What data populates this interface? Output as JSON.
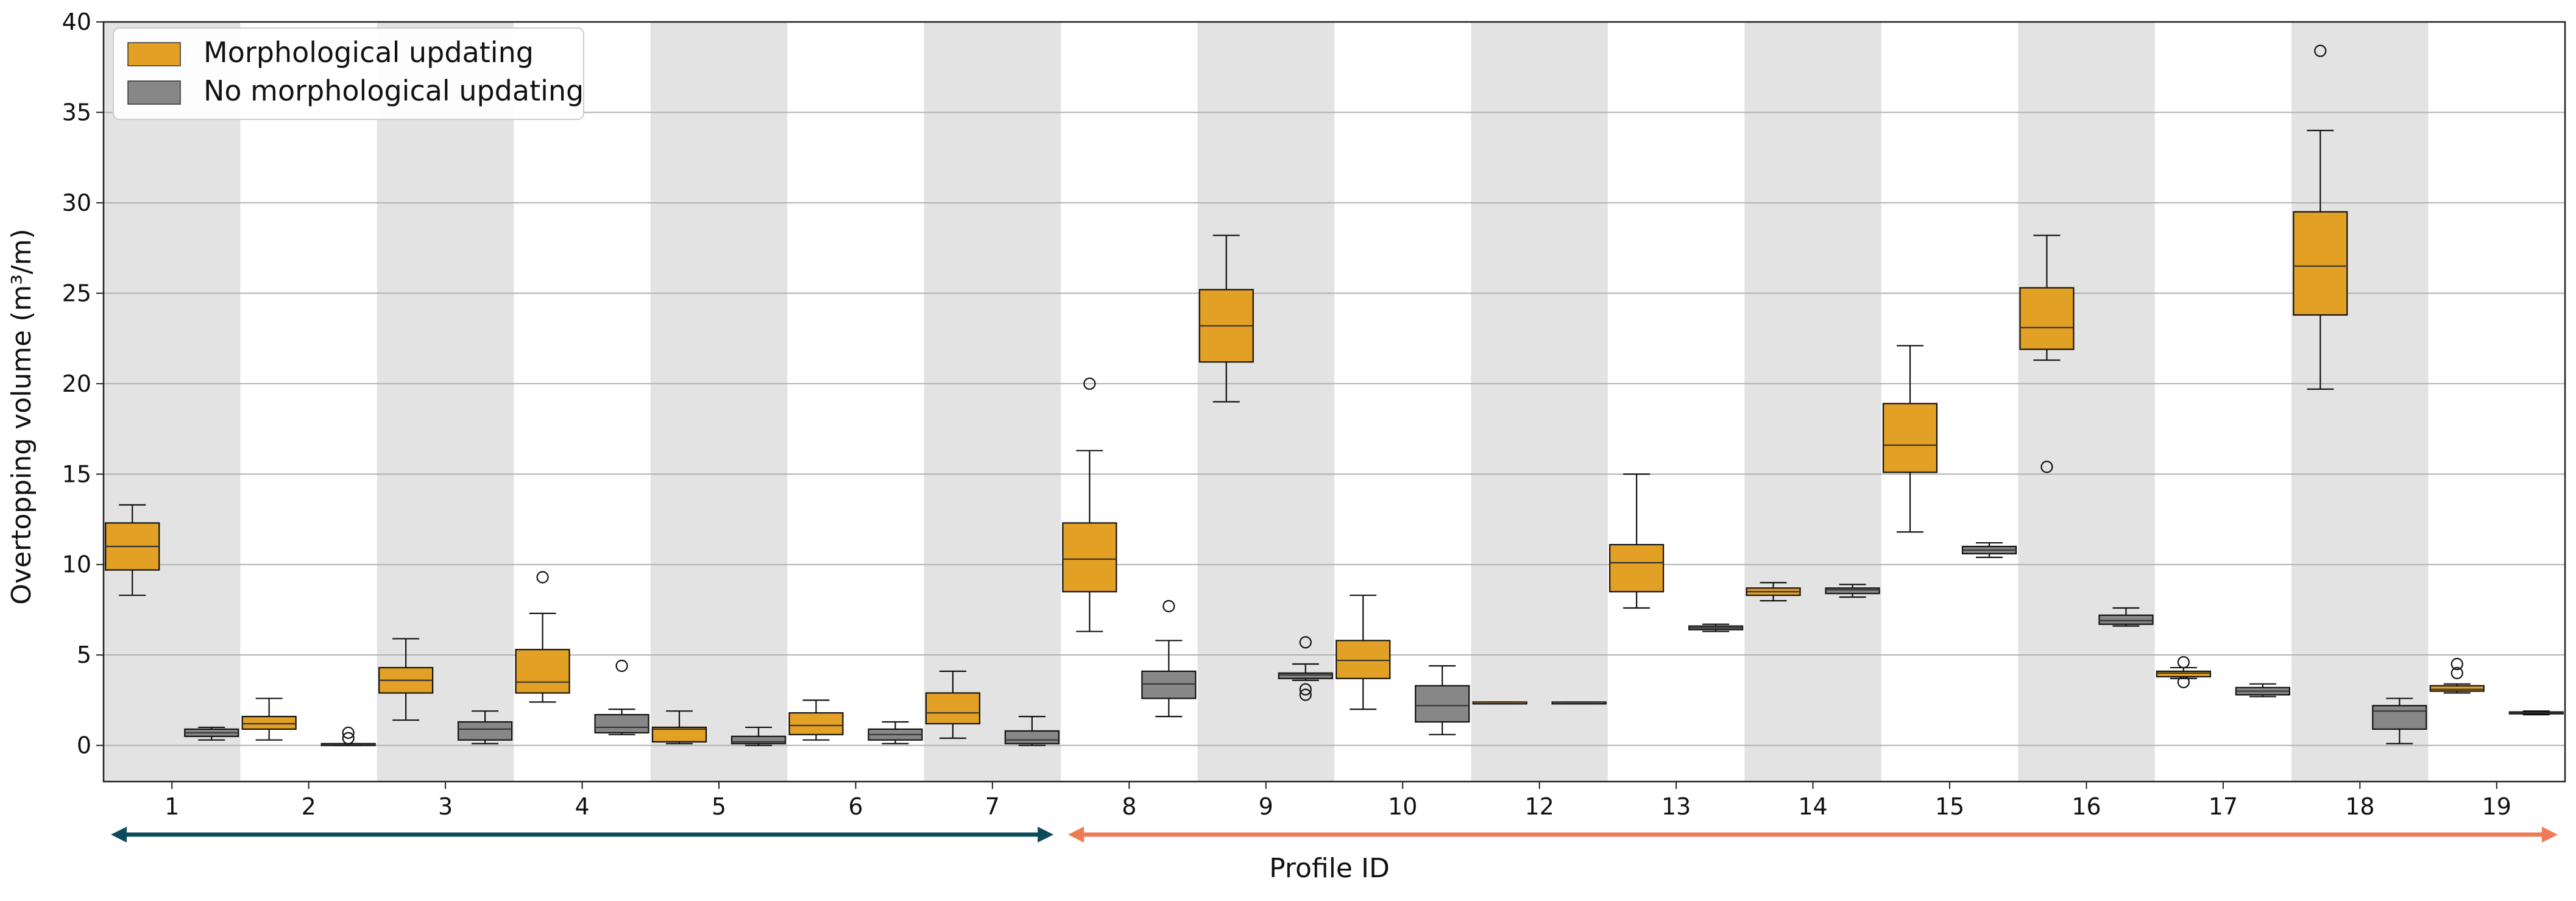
{
  "chart_data": {
    "type": "boxplot",
    "xlabel": "Profile ID",
    "ylabel": "Overtopping volume (m³/m)",
    "ylim": [
      -2,
      40
    ],
    "yticks": [
      0,
      5,
      10,
      15,
      20,
      25,
      30,
      35,
      40
    ],
    "grid": "horizontal",
    "legend_placement": "top-left",
    "categories": [
      "1",
      "2",
      "3",
      "4",
      "5",
      "6",
      "7",
      "8",
      "9",
      "10",
      "12",
      "13",
      "14",
      "15",
      "16",
      "17",
      "18",
      "19"
    ],
    "series": [
      {
        "name": "Morphological updating",
        "color": "#e2a024",
        "boxes": [
          {
            "whislo": 8.3,
            "q1": 9.7,
            "med": 11.0,
            "q3": 12.3,
            "whishi": 13.3,
            "fliers": []
          },
          {
            "whislo": 0.3,
            "q1": 0.9,
            "med": 1.2,
            "q3": 1.6,
            "whishi": 2.6,
            "fliers": []
          },
          {
            "whislo": 1.4,
            "q1": 2.9,
            "med": 3.6,
            "q3": 4.3,
            "whishi": 5.9,
            "fliers": []
          },
          {
            "whislo": 2.4,
            "q1": 2.9,
            "med": 3.5,
            "q3": 5.3,
            "whishi": 7.3,
            "fliers": [
              9.3
            ]
          },
          {
            "whislo": 0.1,
            "q1": 0.2,
            "med": 0.9,
            "q3": 1.0,
            "whishi": 1.9,
            "fliers": []
          },
          {
            "whislo": 0.3,
            "q1": 0.6,
            "med": 1.1,
            "q3": 1.8,
            "whishi": 2.5,
            "fliers": []
          },
          {
            "whislo": 0.4,
            "q1": 1.2,
            "med": 1.8,
            "q3": 2.9,
            "whishi": 4.1,
            "fliers": []
          },
          {
            "whislo": 6.3,
            "q1": 8.5,
            "med": 10.3,
            "q3": 12.3,
            "whishi": 16.3,
            "fliers": [
              20.0
            ]
          },
          {
            "whislo": 19.0,
            "q1": 21.2,
            "med": 23.2,
            "q3": 25.2,
            "whishi": 28.2,
            "fliers": []
          },
          {
            "whislo": 2.0,
            "q1": 3.7,
            "med": 4.7,
            "q3": 5.8,
            "whishi": 8.3,
            "fliers": []
          },
          {
            "whislo": 2.3,
            "q1": 2.3,
            "med": 2.4,
            "q3": 2.4,
            "whishi": 2.4,
            "fliers": []
          },
          {
            "whislo": 7.6,
            "q1": 8.5,
            "med": 10.1,
            "q3": 11.1,
            "whishi": 15.0,
            "fliers": []
          },
          {
            "whislo": 8.0,
            "q1": 8.3,
            "med": 8.5,
            "q3": 8.7,
            "whishi": 9.0,
            "fliers": []
          },
          {
            "whislo": 11.8,
            "q1": 15.1,
            "med": 16.6,
            "q3": 18.9,
            "whishi": 22.1,
            "fliers": []
          },
          {
            "whislo": 21.3,
            "q1": 21.9,
            "med": 23.1,
            "q3": 25.3,
            "whishi": 28.2,
            "fliers": [
              15.4
            ]
          },
          {
            "whislo": 3.7,
            "q1": 3.8,
            "med": 4.0,
            "q3": 4.1,
            "whishi": 4.3,
            "fliers": [
              4.6,
              3.5
            ]
          },
          {
            "whislo": 19.7,
            "q1": 23.8,
            "med": 26.5,
            "q3": 29.5,
            "whishi": 34.0,
            "fliers": [
              38.4
            ]
          },
          {
            "whislo": 2.9,
            "q1": 3.0,
            "med": 3.1,
            "q3": 3.3,
            "whishi": 3.4,
            "fliers": [
              4.5,
              4.0
            ]
          }
        ]
      },
      {
        "name": "No morphological updating",
        "color": "#878787",
        "boxes": [
          {
            "whislo": 0.3,
            "q1": 0.5,
            "med": 0.7,
            "q3": 0.9,
            "whishi": 1.0,
            "fliers": []
          },
          {
            "whislo": 0.0,
            "q1": 0.0,
            "med": 0.05,
            "q3": 0.1,
            "whishi": 0.1,
            "fliers": [
              0.7,
              0.4
            ]
          },
          {
            "whislo": 0.1,
            "q1": 0.3,
            "med": 0.9,
            "q3": 1.3,
            "whishi": 1.9,
            "fliers": []
          },
          {
            "whislo": 0.6,
            "q1": 0.7,
            "med": 1.0,
            "q3": 1.7,
            "whishi": 2.0,
            "fliers": [
              4.4
            ]
          },
          {
            "whislo": 0.0,
            "q1": 0.1,
            "med": 0.2,
            "q3": 0.5,
            "whishi": 1.0,
            "fliers": []
          },
          {
            "whislo": 0.1,
            "q1": 0.3,
            "med": 0.6,
            "q3": 0.9,
            "whishi": 1.3,
            "fliers": []
          },
          {
            "whislo": 0.0,
            "q1": 0.1,
            "med": 0.3,
            "q3": 0.8,
            "whishi": 1.6,
            "fliers": []
          },
          {
            "whislo": 1.6,
            "q1": 2.6,
            "med": 3.4,
            "q3": 4.1,
            "whishi": 5.8,
            "fliers": [
              7.7
            ]
          },
          {
            "whislo": 3.6,
            "q1": 3.7,
            "med": 3.9,
            "q3": 4.0,
            "whishi": 4.5,
            "fliers": [
              5.7,
              3.1,
              2.8
            ]
          },
          {
            "whislo": 0.6,
            "q1": 1.3,
            "med": 2.2,
            "q3": 3.3,
            "whishi": 4.4,
            "fliers": []
          },
          {
            "whislo": 2.3,
            "q1": 2.3,
            "med": 2.4,
            "q3": 2.4,
            "whishi": 2.4,
            "fliers": []
          },
          {
            "whislo": 6.3,
            "q1": 6.4,
            "med": 6.5,
            "q3": 6.6,
            "whishi": 6.7,
            "fliers": []
          },
          {
            "whislo": 8.2,
            "q1": 8.4,
            "med": 8.6,
            "q3": 8.7,
            "whishi": 8.9,
            "fliers": []
          },
          {
            "whislo": 10.4,
            "q1": 10.6,
            "med": 10.8,
            "q3": 11.0,
            "whishi": 11.2,
            "fliers": []
          },
          {
            "whislo": 6.6,
            "q1": 6.7,
            "med": 6.9,
            "q3": 7.2,
            "whishi": 7.6,
            "fliers": []
          },
          {
            "whislo": 2.7,
            "q1": 2.8,
            "med": 3.0,
            "q3": 3.2,
            "whishi": 3.4,
            "fliers": []
          },
          {
            "whislo": 0.1,
            "q1": 0.9,
            "med": 1.9,
            "q3": 2.2,
            "whishi": 2.6,
            "fliers": []
          },
          {
            "whislo": 1.7,
            "q1": 1.75,
            "med": 1.8,
            "q3": 1.85,
            "whishi": 1.9,
            "fliers": []
          }
        ]
      }
    ],
    "shaded_categories": [
      "1",
      "3",
      "5",
      "7",
      "9",
      "12",
      "14",
      "16",
      "18"
    ],
    "group_arrows": [
      {
        "from": "1",
        "to": "7",
        "color": "#0d4a5c"
      },
      {
        "from": "8",
        "to": "19",
        "color": "#f07a55"
      }
    ]
  }
}
